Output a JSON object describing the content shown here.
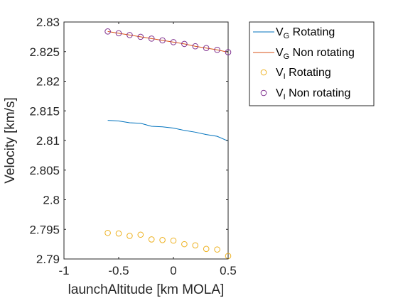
{
  "chart_data": {
    "type": "line",
    "title": "",
    "xlabel": "launchAltitude [km MOLA]",
    "ylabel": "Velocity [km/s]",
    "xlim": [
      -1,
      0.5
    ],
    "ylim": [
      2.79,
      2.83
    ],
    "xticks": [
      "-1",
      "-0.5",
      "0",
      "0.5"
    ],
    "yticks": [
      "2.79",
      "2.795",
      "2.8",
      "2.805",
      "2.81",
      "2.815",
      "2.82",
      "2.825",
      "2.83"
    ],
    "grid": false,
    "legend_position": "outside-right-top",
    "series": [
      {
        "name": "V_G Rotating",
        "label_main": "V",
        "label_sub": "G",
        "label_rest": " Rotating",
        "style": "line",
        "color": "#0072BD",
        "x": [
          -0.6,
          -0.5,
          -0.4,
          -0.3,
          -0.2,
          -0.1,
          0.0,
          0.1,
          0.2,
          0.3,
          0.4,
          0.5
        ],
        "y": [
          2.8134,
          2.8133,
          2.813,
          2.8129,
          2.8124,
          2.8123,
          2.8121,
          2.8117,
          2.8114,
          2.811,
          2.8107,
          2.8099
        ]
      },
      {
        "name": "V_G Non rotating",
        "label_main": "V",
        "label_sub": "G",
        "label_rest": " Non rotating",
        "style": "line",
        "color": "#D95319",
        "x": [
          -0.6,
          -0.5,
          -0.4,
          -0.3,
          -0.2,
          -0.1,
          0.0,
          0.1,
          0.2,
          0.3,
          0.4,
          0.5
        ],
        "y": [
          2.8284,
          2.8281,
          2.8278,
          2.8275,
          2.8272,
          2.8269,
          2.8266,
          2.8263,
          2.8259,
          2.8256,
          2.8253,
          2.8249
        ]
      },
      {
        "name": "V_I Rotating",
        "label_main": "V",
        "label_sub": "I",
        "label_rest": " Rotating",
        "style": "marker",
        "color": "#EDB120",
        "x": [
          -0.6,
          -0.5,
          -0.4,
          -0.3,
          -0.2,
          -0.1,
          0.0,
          0.1,
          0.2,
          0.3,
          0.4,
          0.5
        ],
        "y": [
          2.7944,
          2.7943,
          2.7939,
          2.7941,
          2.7933,
          2.7932,
          2.7931,
          2.7925,
          2.7923,
          2.7917,
          2.7916,
          2.7905
        ]
      },
      {
        "name": "V_I Non rotating",
        "label_main": "V",
        "label_sub": "I",
        "label_rest": " Non rotating",
        "style": "marker",
        "color": "#7E2F8E",
        "x": [
          -0.6,
          -0.5,
          -0.4,
          -0.3,
          -0.2,
          -0.1,
          0.0,
          0.1,
          0.2,
          0.3,
          0.4,
          0.5
        ],
        "y": [
          2.8284,
          2.8281,
          2.8278,
          2.8275,
          2.8272,
          2.8269,
          2.8266,
          2.8263,
          2.8259,
          2.8256,
          2.8253,
          2.8249
        ]
      }
    ]
  }
}
